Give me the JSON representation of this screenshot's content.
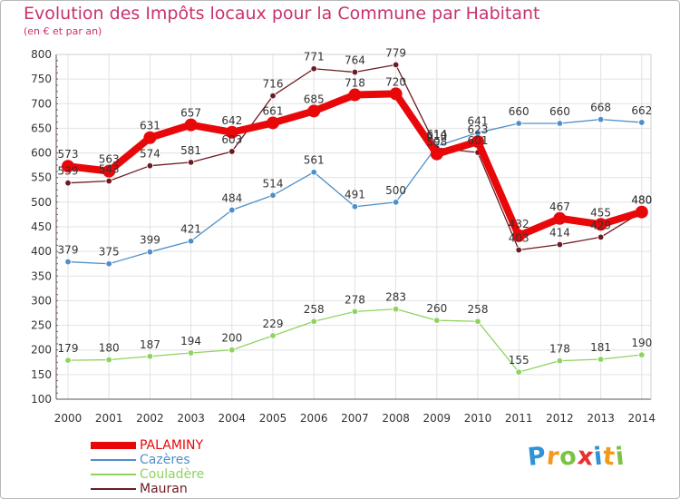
{
  "header": {
    "title": "Evolution des Impôts locaux pour la Commune par Habitant",
    "subtitle": "(en € et par an)"
  },
  "logo": {
    "letters": [
      "P",
      "r",
      "o",
      "x",
      "i",
      "t",
      "i"
    ],
    "colors": [
      "#2f93d8",
      "#f39a1d",
      "#7cc243",
      "#e8312f",
      "#2f93d8",
      "#f39a1d",
      "#7cc243"
    ]
  },
  "chart_data": {
    "type": "line",
    "x": [
      2000,
      2001,
      2002,
      2003,
      2004,
      2005,
      2006,
      2007,
      2008,
      2009,
      2010,
      2011,
      2012,
      2013,
      2014
    ],
    "ylim": [
      100,
      800
    ],
    "yticks": [
      100,
      150,
      200,
      250,
      300,
      350,
      400,
      450,
      500,
      550,
      600,
      650,
      700,
      750,
      800
    ],
    "grid": true,
    "legend_position": "bottom-left",
    "series": [
      {
        "name": "PALAMINY",
        "color": "#e8080a",
        "values": [
          573,
          563,
          631,
          657,
          642,
          661,
          685,
          718,
          720,
          598,
          623,
          432,
          467,
          455,
          480
        ],
        "labels": [
          "573",
          "563",
          "631",
          "657",
          "642",
          "661",
          "685",
          "718",
          "720",
          "598",
          "623",
          "432",
          "467",
          "455",
          "480"
        ]
      },
      {
        "name": "Cazères",
        "color": "#4f8fc9",
        "values": [
          379,
          375,
          399,
          421,
          484,
          514,
          561,
          491,
          500,
          614,
          641,
          660,
          660,
          668,
          662
        ],
        "labels": [
          "379",
          "375",
          "399",
          "421",
          "484",
          "514",
          "561",
          "491",
          "500",
          "614",
          "641",
          "660",
          "660",
          "668",
          "662"
        ]
      },
      {
        "name": "Couladère",
        "color": "#8fd35f",
        "values": [
          179,
          180,
          187,
          194,
          200,
          229,
          258,
          278,
          283,
          260,
          258,
          155,
          178,
          181,
          190
        ],
        "labels": [
          "179",
          "180",
          "187",
          "194",
          "200",
          "229",
          "258",
          "278",
          "283",
          "260",
          "258",
          "155",
          "178",
          "181",
          "190"
        ]
      },
      {
        "name": "Mauran",
        "color": "#6e1a22",
        "values": [
          539,
          543,
          574,
          581,
          603,
          716,
          771,
          764,
          779,
          610,
          601,
          403,
          414,
          429,
          480
        ],
        "labels": [
          "539",
          "543",
          "574",
          "581",
          "603",
          "716",
          "771",
          "764",
          "779",
          "610",
          "601",
          "403",
          "414",
          "429",
          "480"
        ]
      }
    ]
  }
}
